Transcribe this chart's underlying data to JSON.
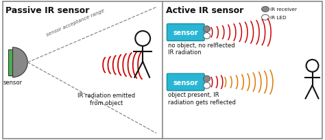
{
  "bg_color": "#ffffff",
  "border_color": "#888888",
  "left_title": "Passive IR sensor",
  "right_title": "Active IR sensor",
  "sensor_label": "sensor",
  "passive_radiation_label": "IR radiation emitted\nfrom object",
  "acceptance_label": "sensor acceptance range",
  "no_object_label": "no object, no relflected\nIR radiation",
  "object_label": "object present, IR\nradiation gets reflected",
  "ir_receiver_label": "IR receiver",
  "ir_led_label": "IR LED",
  "sensor_box_color": "#29b6d5",
  "sensor_text_color": "#ffffff",
  "green_rect_color": "#4caf50",
  "gray_circle_color": "#888888",
  "red_wave_color": "#cc0000",
  "orange_wave_color": "#dd7700",
  "stick_color": "#111111",
  "dashed_line_color": "#888888",
  "title_fontsize": 9,
  "label_fontsize": 6.0
}
